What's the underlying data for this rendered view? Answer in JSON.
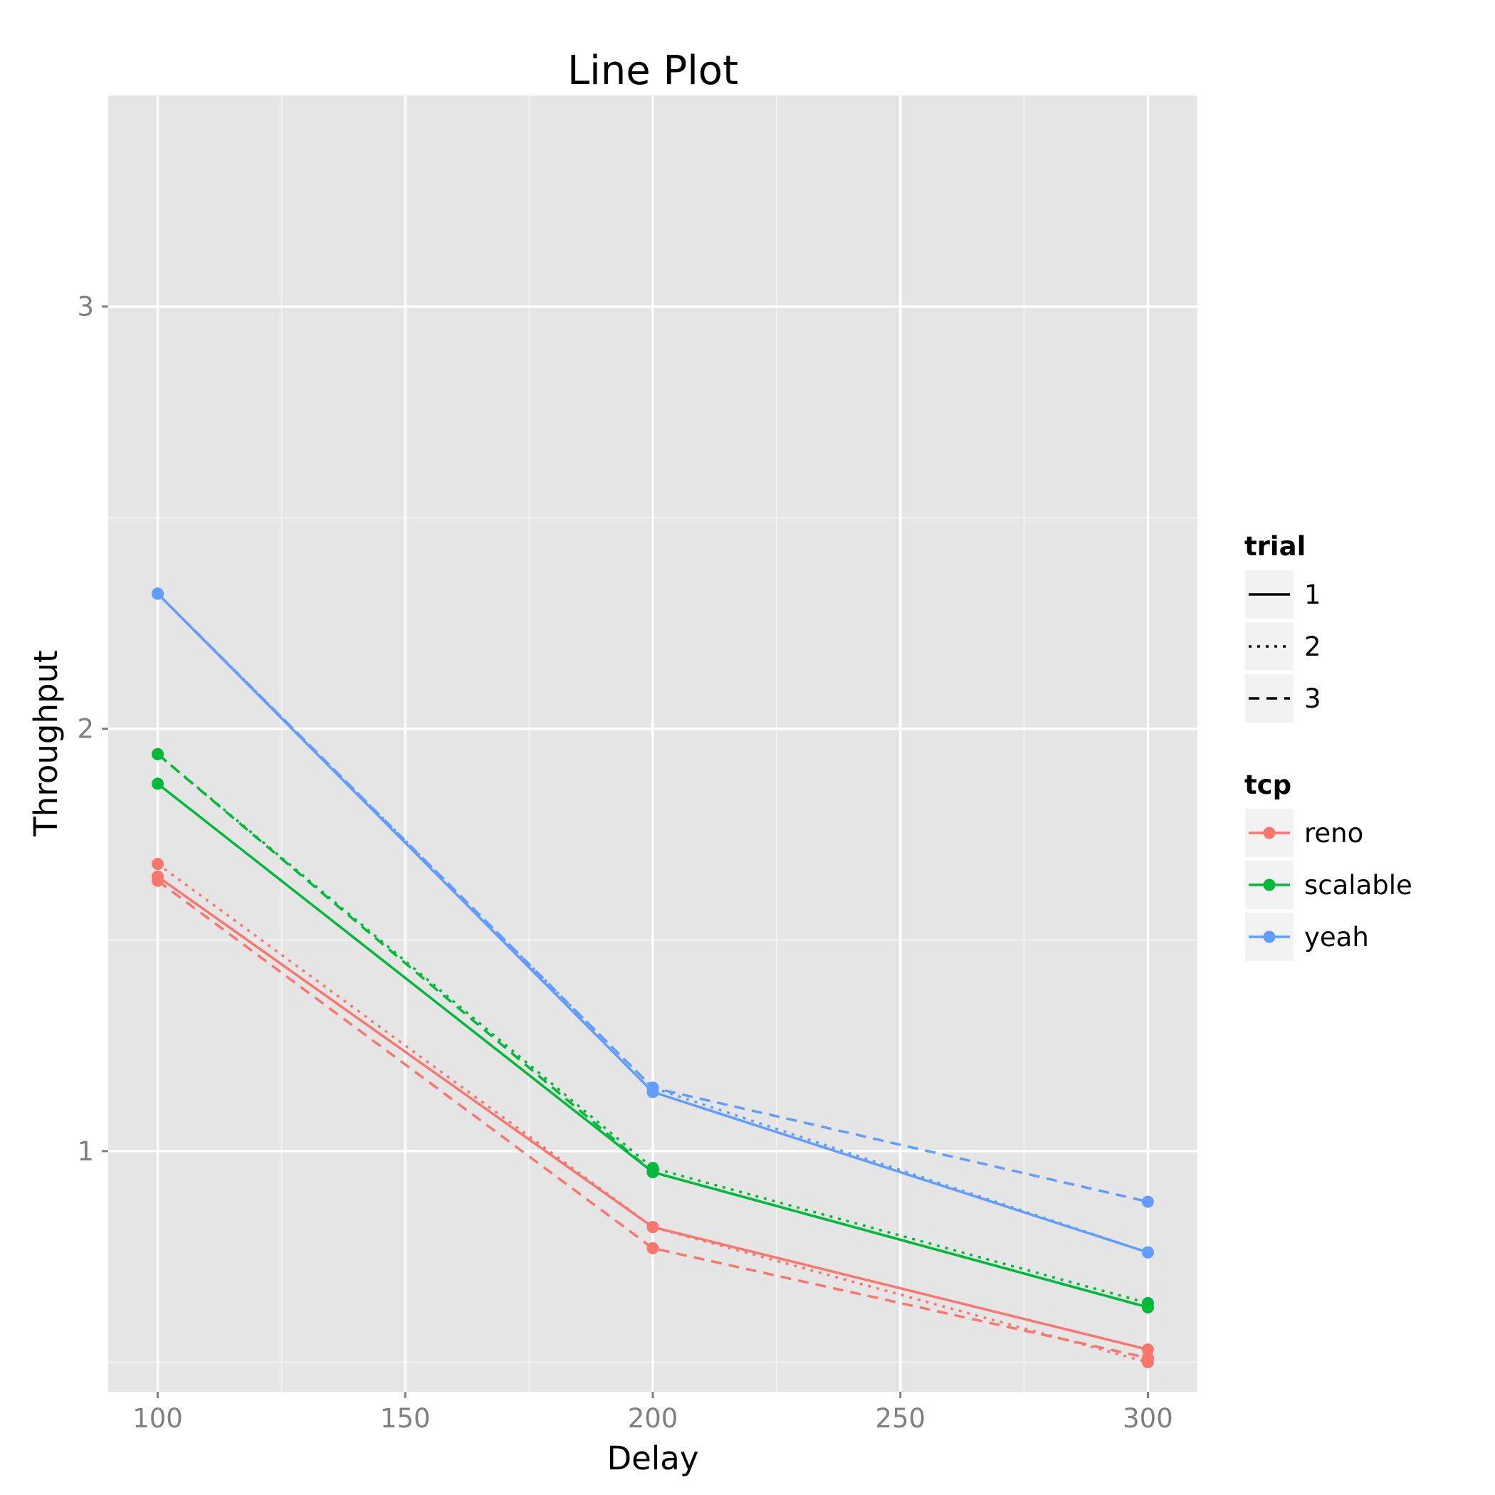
{
  "chart_data": {
    "type": "line",
    "title": "Line Plot",
    "xlabel": "Delay",
    "ylabel": "Throughput",
    "x": [
      100,
      200,
      300
    ],
    "xlim": [
      90,
      310
    ],
    "ylim": [
      0.43,
      3.5
    ],
    "x_ticks": [
      100,
      150,
      200,
      250,
      300
    ],
    "y_ticks": [
      1,
      2,
      3
    ],
    "x_tick_labels": [
      "100",
      "150",
      "200",
      "250",
      "300"
    ],
    "y_tick_labels": [
      "1",
      "2",
      "3"
    ],
    "grid": true,
    "legend_position": "right",
    "colors": {
      "panel_background": "#e5e5e5",
      "grid_major": "#ffffff",
      "grid_minor": "#f2f2f2",
      "legend_key_background": "#f2f2f2",
      "reno": "#f8766d",
      "scalable": "#00ba38",
      "yeah": "#619cff"
    },
    "legends": [
      {
        "title": "trial",
        "entries": [
          {
            "label": "1",
            "linetype": "solid"
          },
          {
            "label": "2",
            "linetype": "dotted"
          },
          {
            "label": "3",
            "linetype": "dashed"
          }
        ]
      },
      {
        "title": "tcp",
        "entries": [
          {
            "label": "reno",
            "color": "#f8766d"
          },
          {
            "label": "scalable",
            "color": "#00ba38"
          },
          {
            "label": "yeah",
            "color": "#619cff"
          }
        ]
      }
    ],
    "series": [
      {
        "tcp": "reno",
        "trial": "1",
        "values": [
          1.65,
          0.82,
          0.53
        ]
      },
      {
        "tcp": "reno",
        "trial": "2",
        "values": [
          1.68,
          0.82,
          0.5
        ]
      },
      {
        "tcp": "reno",
        "trial": "3",
        "values": [
          1.64,
          0.77,
          0.51
        ]
      },
      {
        "tcp": "scalable",
        "trial": "1",
        "values": [
          1.87,
          0.95,
          0.63
        ]
      },
      {
        "tcp": "scalable",
        "trial": "2",
        "values": [
          1.94,
          0.96,
          0.64
        ]
      },
      {
        "tcp": "scalable",
        "trial": "3",
        "values": [
          1.94,
          0.95,
          0.63
        ]
      },
      {
        "tcp": "yeah",
        "trial": "1",
        "values": [
          2.32,
          1.14,
          0.76
        ]
      },
      {
        "tcp": "yeah",
        "trial": "2",
        "values": [
          2.32,
          1.15,
          0.76
        ]
      },
      {
        "tcp": "yeah",
        "trial": "3",
        "values": [
          2.32,
          1.15,
          0.88
        ]
      }
    ]
  }
}
